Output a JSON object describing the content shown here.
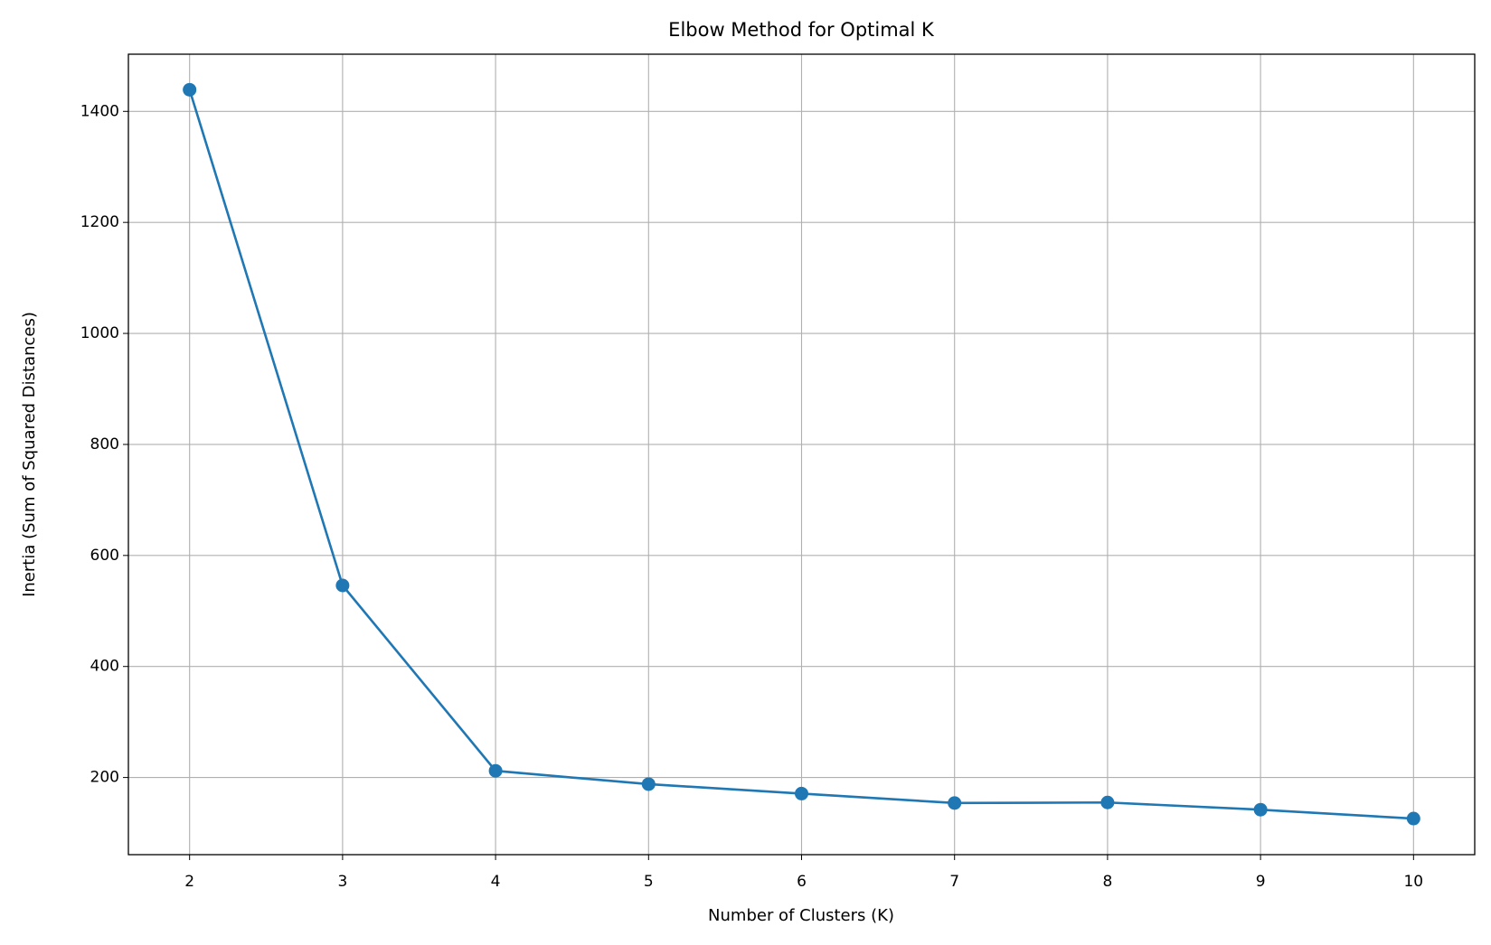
{
  "chart_data": {
    "type": "line",
    "title": "Elbow Method for Optimal K",
    "x_label": "Number of Clusters (K)",
    "y_label": "Inertia (Sum of Squared Distances)",
    "x": [
      2,
      3,
      4,
      5,
      6,
      7,
      8,
      9,
      10
    ],
    "series": [
      {
        "color": "#1f77b4",
        "values": [
          1439,
          546,
          212,
          188,
          171,
          154,
          155,
          142,
          126
        ]
      }
    ],
    "xlim": [
      1.6,
      10.4
    ],
    "xticks": [
      2,
      3,
      4,
      5,
      6,
      7,
      8,
      9,
      10
    ],
    "ylim": [
      61,
      1503
    ],
    "yticks": [
      200,
      400,
      600,
      800,
      1000,
      1200,
      1400
    ],
    "grid": true,
    "markers": true
  }
}
